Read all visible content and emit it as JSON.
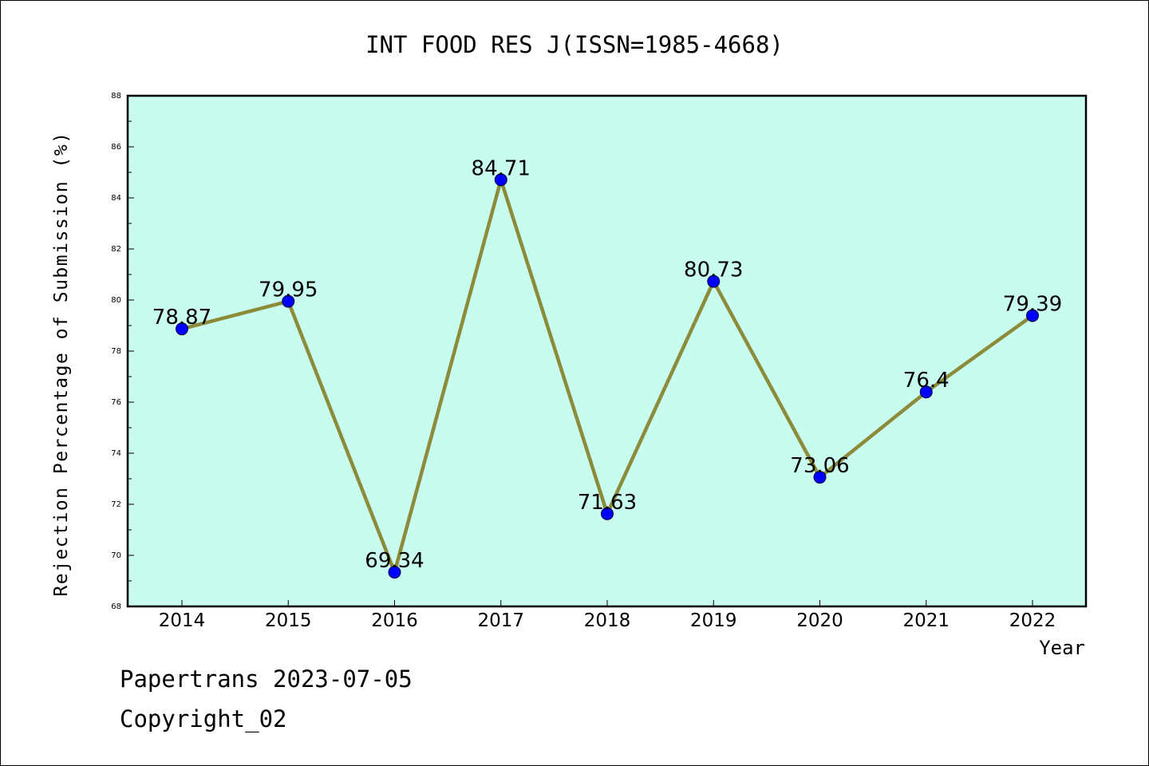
{
  "chart_data": {
    "type": "line",
    "title": "INT FOOD RES J(ISSN=1985-4668)",
    "xlabel": "Year",
    "ylabel": "Rejection Percentage of Submission (%)",
    "categories": [
      "2014",
      "2015",
      "2016",
      "2017",
      "2018",
      "2019",
      "2020",
      "2021",
      "2022"
    ],
    "values": [
      78.87,
      79.95,
      69.34,
      84.71,
      71.63,
      80.73,
      73.06,
      76.4,
      79.39
    ],
    "value_labels": [
      "78.87",
      "79.95",
      "69.34",
      "84.71",
      "71.63",
      "80.73",
      "73.06",
      "76.4",
      "79.39"
    ],
    "ylim": [
      68,
      88
    ],
    "yticks": [
      "68",
      "70",
      "72",
      "74",
      "76",
      "78",
      "80",
      "82",
      "84",
      "86",
      "88"
    ],
    "grid": false,
    "legend": "none",
    "colors": {
      "plot_background": "#c8fcee",
      "line": "#8b8b3a",
      "marker": "#0000ff",
      "axes": "#000000"
    }
  },
  "footer": {
    "line1": "Papertrans 2023-07-05",
    "line2": "Copyright_02"
  }
}
